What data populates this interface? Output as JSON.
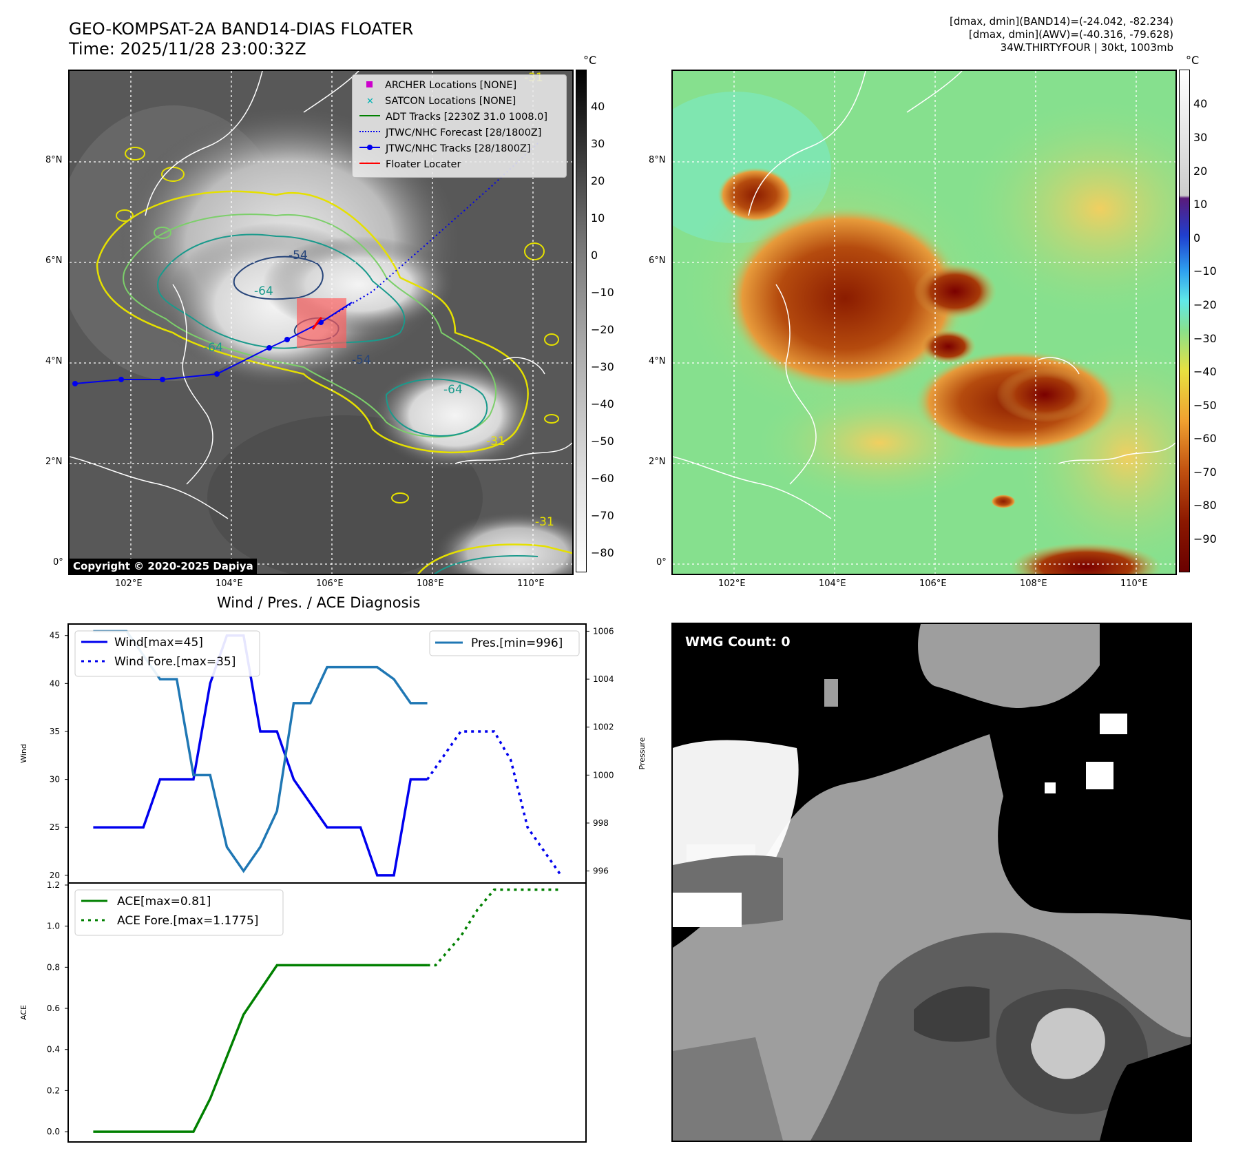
{
  "header": {
    "title_line1": "GEO-KOMPSAT-2A BAND14-DIAS FLOATER",
    "title_line2": "Time: 2025/11/28 23:00:32Z",
    "info_line1": "[dmax, dmin](BAND14)=(-24.042, -82.234)",
    "info_line2": "[dmax, dmin](AWV)=(-40.316, -79.628)",
    "info_line3": "34W.THIRTYFOUR | 30kt, 1003mb"
  },
  "map": {
    "lat_labels": [
      "8°N",
      "6°N",
      "4°N",
      "2°N",
      "0°"
    ],
    "lon_labels": [
      "102°E",
      "104°E",
      "106°E",
      "108°E",
      "110°E"
    ],
    "unit_label": "°C",
    "copyright": "Copyright © 2020-2025 Dapiya",
    "contour_labels": [
      "-64",
      "-64",
      "-64",
      "-31",
      "-31",
      "-31",
      "-54",
      "-54"
    ],
    "legend": [
      {
        "label": "ARCHER Locations [NONE]",
        "color": "#cc00cc"
      },
      {
        "label": "SATCON Locations [NONE]",
        "color": "#00b3b3"
      },
      {
        "label": "ADT Tracks [2230Z 31.0 1008.0]",
        "color": "#008000"
      },
      {
        "label": "JTWC/NHC Forecast [28/1800Z]",
        "color": "#0000ff"
      },
      {
        "label": "JTWC/NHC Tracks [28/1800Z]",
        "color": "#0000ff"
      },
      {
        "label": "Floater Locater",
        "color": "#ff0000"
      }
    ],
    "gray_colorbar_ticks": [
      "40",
      "30",
      "20",
      "10",
      "0",
      "−10",
      "−20",
      "−30",
      "−40",
      "−50",
      "−60",
      "−70",
      "−80"
    ],
    "color_colorbar_ticks": [
      "40",
      "30",
      "20",
      "10",
      "0",
      "−10",
      "−20",
      "−30",
      "−40",
      "−50",
      "−60",
      "−70",
      "−80",
      "−90"
    ]
  },
  "wmg": {
    "label": "WMG Count: 0"
  },
  "chart_data": [
    {
      "type": "line",
      "title": "Wind / Pres. / ACE Diagnosis",
      "ylabel": "Wind",
      "ylabel_right": "Pressure",
      "ylim": [
        19.2,
        46.2
      ],
      "y2lim": [
        995.5,
        1006.3
      ],
      "x": [
        0,
        1,
        2,
        3,
        4,
        5,
        6,
        7,
        8,
        9,
        10,
        11,
        12,
        13,
        14,
        15,
        16,
        17,
        18,
        19,
        20,
        21,
        22,
        23,
        24,
        25,
        26,
        27,
        28
      ],
      "yticks": [
        "45",
        "40",
        "35",
        "30",
        "25",
        "20"
      ],
      "y2ticks": [
        "1006",
        "1004",
        "1002",
        "1000",
        "998",
        "996"
      ],
      "series": [
        {
          "name": "Wind[max=45]",
          "axis": "left",
          "color": "#0000ee",
          "style": "solid",
          "x": [
            0,
            3,
            4,
            6,
            7,
            8,
            9,
            10,
            11,
            12,
            14,
            16,
            17,
            18,
            19,
            20
          ],
          "values": [
            25,
            25,
            30,
            30,
            40,
            45,
            45,
            35,
            35,
            30,
            25,
            25,
            20,
            20,
            30,
            30
          ]
        },
        {
          "name": "Wind Fore.[max=35]",
          "axis": "left",
          "color": "#0000ee",
          "style": "dotted",
          "x": [
            20,
            22,
            24,
            25,
            26,
            28
          ],
          "values": [
            30,
            35,
            35,
            32,
            25,
            20
          ]
        },
        {
          "name": "Pres.[min=996]",
          "axis": "right",
          "color": "#1f77b4",
          "style": "solid",
          "x": [
            0,
            2,
            4,
            5,
            6,
            7,
            8,
            9,
            10,
            11,
            12,
            13,
            14,
            17,
            18,
            19,
            20
          ],
          "values": [
            1006,
            1006,
            1004,
            1004,
            1000,
            1000,
            997,
            996,
            997,
            998.5,
            1003,
            1003,
            1004.5,
            1004.5,
            1004,
            1003,
            1003
          ]
        }
      ]
    },
    {
      "type": "line",
      "ylabel": "ACE",
      "ylim": [
        -0.05,
        1.21
      ],
      "x": [
        0,
        1,
        2,
        3,
        4,
        5,
        6,
        7,
        8,
        9,
        10,
        11,
        12,
        13,
        14,
        15,
        16,
        17,
        18,
        19,
        20,
        21,
        22,
        23,
        24,
        25,
        26,
        27,
        28
      ],
      "yticks": [
        "1.2",
        "1.0",
        "0.8",
        "0.6",
        "0.4",
        "0.2",
        "0.0"
      ],
      "series": [
        {
          "name": "ACE[max=0.81]",
          "color": "#008000",
          "style": "solid",
          "x": [
            0,
            6,
            7,
            9,
            10,
            11,
            12,
            13,
            14,
            15,
            16,
            17,
            18,
            19,
            20
          ],
          "values": [
            0,
            0,
            0.16,
            0.57,
            0.69,
            0.81,
            0.81,
            0.81,
            0.81,
            0.81,
            0.81,
            0.81,
            0.81,
            0.81,
            0.81
          ]
        },
        {
          "name": "ACE Fore.[max=1.1775]",
          "color": "#008000",
          "style": "dotted",
          "x": [
            20,
            20.5,
            22,
            23,
            24,
            26,
            28
          ],
          "values": [
            0.81,
            0.81,
            0.95,
            1.08,
            1.1775,
            1.1775,
            1.1775
          ]
        }
      ]
    }
  ]
}
